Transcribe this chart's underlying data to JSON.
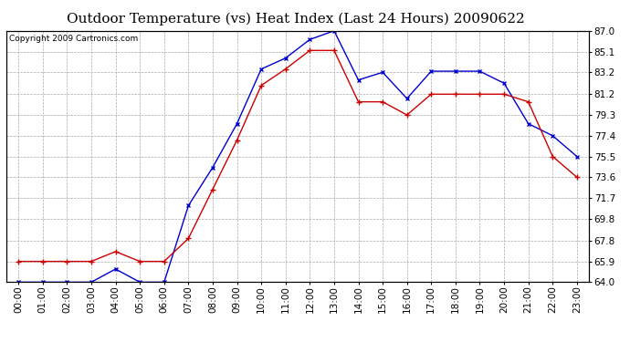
{
  "title": "Outdoor Temperature (vs) Heat Index (Last 24 Hours) 20090622",
  "copyright": "Copyright 2009 Cartronics.com",
  "x_labels": [
    "00:00",
    "01:00",
    "02:00",
    "03:00",
    "04:00",
    "05:00",
    "06:00",
    "07:00",
    "08:00",
    "09:00",
    "10:00",
    "11:00",
    "12:00",
    "13:00",
    "14:00",
    "15:00",
    "16:00",
    "17:00",
    "18:00",
    "19:00",
    "20:00",
    "21:00",
    "22:00",
    "23:00"
  ],
  "blue_data": [
    64.0,
    64.0,
    64.0,
    64.0,
    65.2,
    64.0,
    64.0,
    71.0,
    74.5,
    78.5,
    83.5,
    84.5,
    86.2,
    87.0,
    82.5,
    83.2,
    80.8,
    83.3,
    83.3,
    83.3,
    82.2,
    78.5,
    77.4,
    75.5
  ],
  "red_data": [
    65.9,
    65.9,
    65.9,
    65.9,
    66.8,
    65.9,
    65.9,
    68.0,
    72.5,
    77.0,
    82.0,
    83.5,
    85.2,
    85.2,
    80.5,
    80.5,
    79.3,
    81.2,
    81.2,
    81.2,
    81.2,
    80.5,
    75.5,
    73.6
  ],
  "blue_color": "#0000cc",
  "red_color": "#cc0000",
  "ylim_min": 64.0,
  "ylim_max": 87.0,
  "y_ticks": [
    64.0,
    65.9,
    67.8,
    69.8,
    71.7,
    73.6,
    75.5,
    77.4,
    79.3,
    81.2,
    83.2,
    85.1,
    87.0
  ],
  "bg_color": "#ffffff",
  "plot_bg_color": "#ffffff",
  "grid_color": "#aaaaaa",
  "title_fontsize": 11,
  "copyright_fontsize": 6.5,
  "tick_fontsize": 7.5
}
